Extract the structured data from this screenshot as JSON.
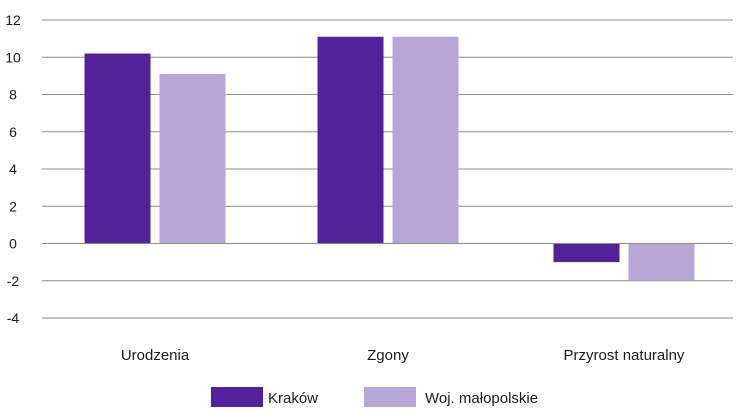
{
  "chart_data": {
    "type": "bar",
    "categories": [
      "Urodzenia",
      "Zgony",
      "Przyrost naturalny"
    ],
    "series": [
      {
        "name": "Kraków",
        "color": "#51229a",
        "values": [
          10.2,
          11.1,
          -1.0
        ]
      },
      {
        "name": "Woj. małopolskie",
        "color": "#b8a7d6",
        "values": [
          9.1,
          11.1,
          -2.0
        ]
      }
    ],
    "ylim": [
      -4,
      12
    ],
    "yticks": [
      12,
      10,
      8,
      6,
      4,
      2,
      0,
      -2,
      -4
    ],
    "ytick_labels": [
      "12",
      "10",
      "8",
      "6",
      "4",
      "2",
      "0",
      "-2",
      "-4"
    ],
    "grid": true,
    "legend": "bottom",
    "title": "",
    "xlabel": "",
    "ylabel": ""
  }
}
